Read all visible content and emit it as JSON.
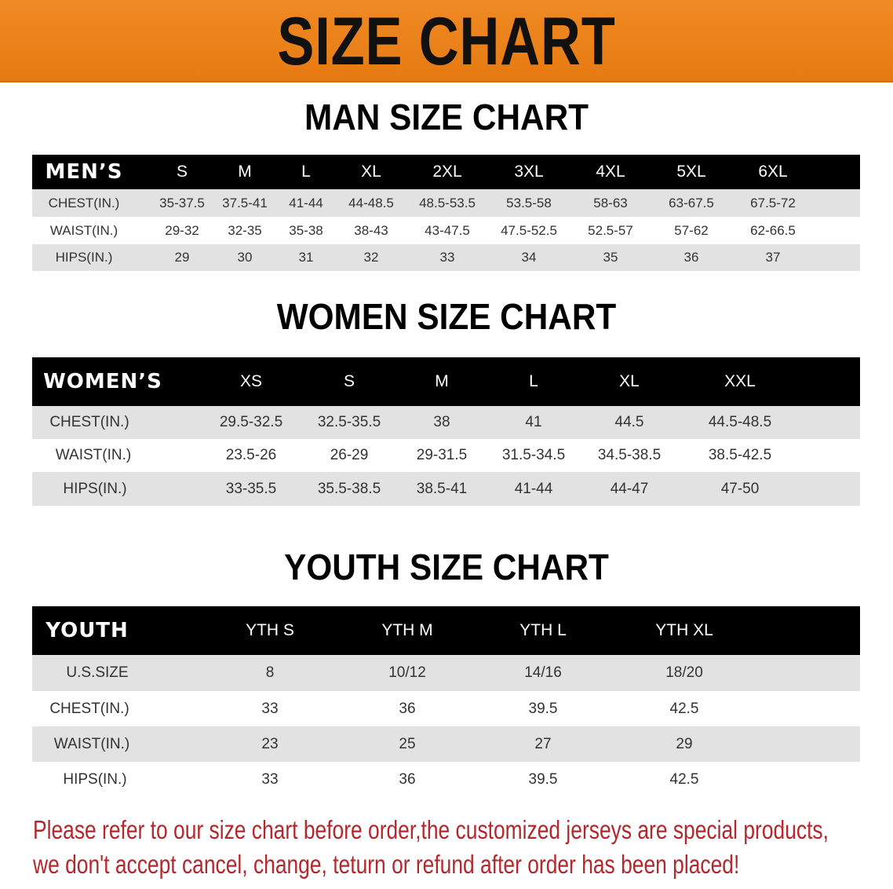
{
  "banner_title": "SIZE CHART",
  "men": {
    "title": "MAN SIZE CHART",
    "header": [
      "MEN’S",
      "S",
      "M",
      "L",
      "XL",
      "2XL",
      "3XL",
      "4XL",
      "5XL",
      "6XL"
    ],
    "rows": [
      [
        "CHEST(IN.)",
        "35-37.5",
        "37.5-41",
        "41-44",
        "44-48.5",
        "48.5-53.5",
        "53.5-58",
        "58-63",
        "63-67.5",
        "67.5-72"
      ],
      [
        "WAIST(IN.)",
        "29-32",
        "32-35",
        "35-38",
        "38-43",
        "43-47.5",
        "47.5-52.5",
        "52.5-57",
        "57-62",
        "62-66.5"
      ],
      [
        "HIPS(IN.)",
        "29",
        "30",
        "31",
        "32",
        "33",
        "34",
        "35",
        "36",
        "37"
      ]
    ]
  },
  "women": {
    "title": "WOMEN SIZE CHART",
    "header": [
      "WOMEN’S",
      "XS",
      "S",
      "M",
      "L",
      "XL",
      "XXL"
    ],
    "rows": [
      [
        "CHEST(IN.)",
        "29.5-32.5",
        "32.5-35.5",
        "38",
        "41",
        "44.5",
        "44.5-48.5"
      ],
      [
        "WAIST(IN.)",
        "23.5-26",
        "26-29",
        "29-31.5",
        "31.5-34.5",
        "34.5-38.5",
        "38.5-42.5"
      ],
      [
        "HIPS(IN.)",
        "33-35.5",
        "35.5-38.5",
        "38.5-41",
        "41-44",
        "44-47",
        "47-50"
      ]
    ]
  },
  "youth": {
    "title": "YOUTH SIZE CHART",
    "header": [
      "YOUTH",
      "YTH S",
      "YTH M",
      "YTH L",
      "YTH XL"
    ],
    "rows": [
      [
        "U.S.SIZE",
        "8",
        "10/12",
        "14/16",
        "18/20"
      ],
      [
        "CHEST(IN.)",
        "33",
        "36",
        "39.5",
        "42.5"
      ],
      [
        "WAIST(IN.)",
        "23",
        "25",
        "27",
        "29"
      ],
      [
        "HIPS(IN.)",
        "33",
        "36",
        "39.5",
        "42.5"
      ]
    ]
  },
  "notice": [
    "Please refer to our size chart before order,the customized jerseys are special products,",
    "we don't accept cancel, change, teturn or refund after order has been placed!"
  ],
  "colors": {
    "banner": "#ee841c",
    "header_row": "#000000",
    "stripe": "#e2e2e2",
    "notice": "#b3282d"
  }
}
